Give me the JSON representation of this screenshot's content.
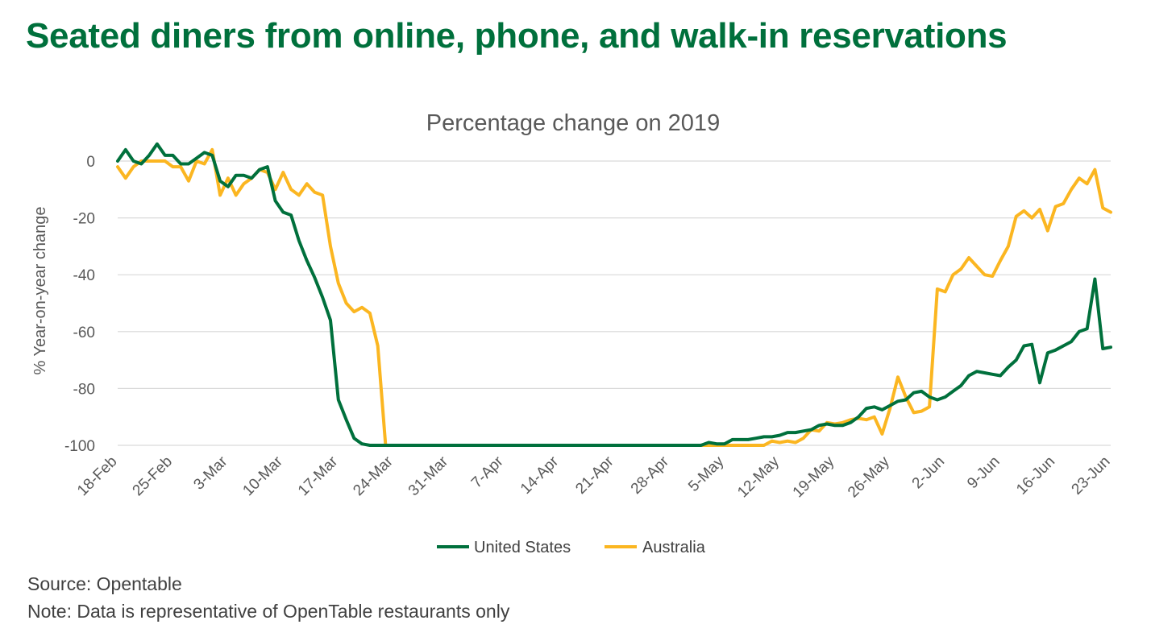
{
  "header": {
    "title": "Seated diners from online, phone, and walk-in reservations"
  },
  "footer": {
    "source": "Source: Opentable",
    "note": "Note: Data is representative of OpenTable restaurants only"
  },
  "chart_data": {
    "type": "line",
    "title": "Percentage change on 2019",
    "xlabel": "",
    "ylabel": "% Year-on-year change",
    "ylim": [
      -100,
      5
    ],
    "yticks": [
      0,
      -20,
      -40,
      -60,
      -80,
      -100
    ],
    "grid": true,
    "legend_position": "bottom",
    "x_tick_labels": [
      "18-Feb",
      "25-Feb",
      "3-Mar",
      "10-Mar",
      "17-Mar",
      "24-Mar",
      "31-Mar",
      "7-Apr",
      "14-Apr",
      "21-Apr",
      "28-Apr",
      "5-May",
      "12-May",
      "19-May",
      "26-May",
      "2-Jun",
      "9-Jun",
      "16-Jun",
      "23-Jun"
    ],
    "series": [
      {
        "name": "United States",
        "color": "#00703C",
        "points": [
          [
            "18-Feb",
            0
          ],
          [
            "19-Feb",
            4
          ],
          [
            "20-Feb",
            0
          ],
          [
            "21-Feb",
            -1
          ],
          [
            "22-Feb",
            2
          ],
          [
            "23-Feb",
            6
          ],
          [
            "24-Feb",
            2
          ],
          [
            "25-Feb",
            2
          ],
          [
            "26-Feb",
            -1
          ],
          [
            "27-Feb",
            -1
          ],
          [
            "28-Feb",
            1
          ],
          [
            "29-Feb",
            3
          ],
          [
            "1-Mar",
            2
          ],
          [
            "2-Mar",
            -7
          ],
          [
            "3-Mar",
            -9
          ],
          [
            "4-Mar",
            -5
          ],
          [
            "5-Mar",
            -5
          ],
          [
            "6-Mar",
            -6
          ],
          [
            "7-Mar",
            -3
          ],
          [
            "8-Mar",
            -2
          ],
          [
            "9-Mar",
            -14
          ],
          [
            "10-Mar",
            -18
          ],
          [
            "11-Mar",
            -19
          ],
          [
            "12-Mar",
            -28
          ],
          [
            "13-Mar",
            -35
          ],
          [
            "14-Mar",
            -41
          ],
          [
            "15-Mar",
            -48
          ],
          [
            "16-Mar",
            -56
          ],
          [
            "17-Mar",
            -84
          ],
          [
            "18-Mar",
            -91
          ],
          [
            "19-Mar",
            -97.5
          ],
          [
            "20-Mar",
            -99.5
          ],
          [
            "21-Mar",
            -100
          ],
          [
            "22-Mar",
            -100
          ],
          [
            "23-Mar",
            -100
          ],
          [
            "2-May",
            -100
          ],
          [
            "3-May",
            -99
          ],
          [
            "4-May",
            -99.5
          ],
          [
            "5-May",
            -99.5
          ],
          [
            "6-May",
            -98
          ],
          [
            "7-May",
            -98
          ],
          [
            "8-May",
            -98
          ],
          [
            "9-May",
            -97.5
          ],
          [
            "10-May",
            -97
          ],
          [
            "11-May",
            -97
          ],
          [
            "12-May",
            -96.5
          ],
          [
            "13-May",
            -95.5
          ],
          [
            "14-May",
            -95.5
          ],
          [
            "15-May",
            -95
          ],
          [
            "16-May",
            -94.5
          ],
          [
            "17-May",
            -93
          ],
          [
            "18-May",
            -92.5
          ],
          [
            "19-May",
            -93
          ],
          [
            "20-May",
            -93
          ],
          [
            "21-May",
            -92
          ],
          [
            "22-May",
            -90
          ],
          [
            "23-May",
            -87
          ],
          [
            "24-May",
            -86.5
          ],
          [
            "25-May",
            -87.5
          ],
          [
            "26-May",
            -86
          ],
          [
            "27-May",
            -84.5
          ],
          [
            "28-May",
            -84
          ],
          [
            "29-May",
            -81.5
          ],
          [
            "30-May",
            -81
          ],
          [
            "31-May",
            -83
          ],
          [
            "1-Jun",
            -84
          ],
          [
            "2-Jun",
            -83
          ],
          [
            "3-Jun",
            -81
          ],
          [
            "4-Jun",
            -79
          ],
          [
            "5-Jun",
            -75.5
          ],
          [
            "6-Jun",
            -74
          ],
          [
            "7-Jun",
            -74.5
          ],
          [
            "8-Jun",
            -75
          ],
          [
            "9-Jun",
            -75.5
          ],
          [
            "10-Jun",
            -72.5
          ],
          [
            "11-Jun",
            -70
          ],
          [
            "12-Jun",
            -65
          ],
          [
            "13-Jun",
            -64.5
          ],
          [
            "14-Jun",
            -78
          ],
          [
            "15-Jun",
            -67.5
          ],
          [
            "16-Jun",
            -66.5
          ],
          [
            "17-Jun",
            -65
          ],
          [
            "18-Jun",
            -63.5
          ],
          [
            "19-Jun",
            -60
          ],
          [
            "20-Jun",
            -59
          ],
          [
            "21-Jun",
            -41.5
          ],
          [
            "22-Jun",
            -66
          ],
          [
            "23-Jun",
            -65.5
          ]
        ]
      },
      {
        "name": "Australia",
        "color": "#FBB621",
        "points": [
          [
            "18-Feb",
            -2
          ],
          [
            "19-Feb",
            -6
          ],
          [
            "20-Feb",
            -2
          ],
          [
            "21-Feb",
            0
          ],
          [
            "22-Feb",
            0
          ],
          [
            "23-Feb",
            0
          ],
          [
            "24-Feb",
            0
          ],
          [
            "25-Feb",
            -2
          ],
          [
            "26-Feb",
            -2
          ],
          [
            "27-Feb",
            -7
          ],
          [
            "28-Feb",
            0
          ],
          [
            "29-Feb",
            -1
          ],
          [
            "1-Mar",
            4
          ],
          [
            "2-Mar",
            -12
          ],
          [
            "3-Mar",
            -6
          ],
          [
            "4-Mar",
            -12
          ],
          [
            "5-Mar",
            -8
          ],
          [
            "6-Mar",
            -6
          ],
          [
            "7-Mar",
            -3
          ],
          [
            "8-Mar",
            -4
          ],
          [
            "9-Mar",
            -10
          ],
          [
            "10-Mar",
            -4
          ],
          [
            "11-Mar",
            -10
          ],
          [
            "12-Mar",
            -12
          ],
          [
            "13-Mar",
            -8
          ],
          [
            "14-Mar",
            -11
          ],
          [
            "15-Mar",
            -12
          ],
          [
            "16-Mar",
            -30
          ],
          [
            "17-Mar",
            -43
          ],
          [
            "18-Mar",
            -50
          ],
          [
            "19-Mar",
            -53
          ],
          [
            "20-Mar",
            -51.5
          ],
          [
            "21-Mar",
            -53.5
          ],
          [
            "22-Mar",
            -65
          ],
          [
            "23-Mar",
            -100
          ],
          [
            "10-May",
            -100
          ],
          [
            "11-May",
            -98.5
          ],
          [
            "12-May",
            -99
          ],
          [
            "13-May",
            -98.5
          ],
          [
            "14-May",
            -99
          ],
          [
            "15-May",
            -97.5
          ],
          [
            "16-May",
            -94.5
          ],
          [
            "17-May",
            -95
          ],
          [
            "18-May",
            -92
          ],
          [
            "19-May",
            -92.5
          ],
          [
            "20-May",
            -92
          ],
          [
            "21-May",
            -91
          ],
          [
            "22-May",
            -90.5
          ],
          [
            "23-May",
            -91
          ],
          [
            "24-May",
            -90
          ],
          [
            "25-May",
            -96
          ],
          [
            "26-May",
            -87
          ],
          [
            "27-May",
            -76
          ],
          [
            "28-May",
            -83
          ],
          [
            "29-May",
            -88.5
          ],
          [
            "30-May",
            -88
          ],
          [
            "31-May",
            -86.5
          ],
          [
            "1-Jun",
            -45
          ],
          [
            "2-Jun",
            -46
          ],
          [
            "3-Jun",
            -40
          ],
          [
            "4-Jun",
            -38
          ],
          [
            "5-Jun",
            -34
          ],
          [
            "6-Jun",
            -37
          ],
          [
            "7-Jun",
            -40
          ],
          [
            "8-Jun",
            -40.5
          ],
          [
            "9-Jun",
            -35
          ],
          [
            "10-Jun",
            -30
          ],
          [
            "11-Jun",
            -19.5
          ],
          [
            "12-Jun",
            -17.5
          ],
          [
            "13-Jun",
            -20
          ],
          [
            "14-Jun",
            -17
          ],
          [
            "15-Jun",
            -24.5
          ],
          [
            "16-Jun",
            -16
          ],
          [
            "17-Jun",
            -15
          ],
          [
            "18-Jun",
            -10
          ],
          [
            "19-Jun",
            -6
          ],
          [
            "20-Jun",
            -8
          ],
          [
            "21-Jun",
            -3
          ],
          [
            "22-Jun",
            -16.5
          ],
          [
            "23-Jun",
            -18
          ]
        ]
      }
    ]
  }
}
